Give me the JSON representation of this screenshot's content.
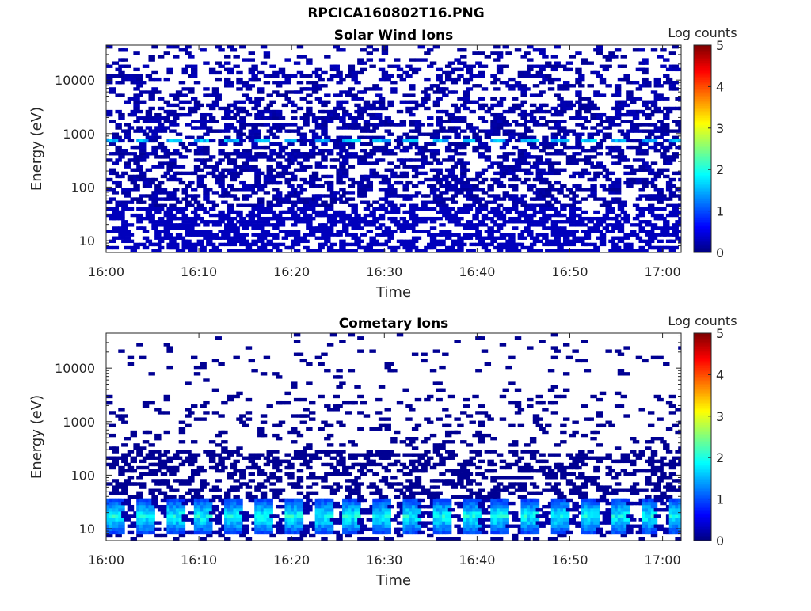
{
  "figure": {
    "title": "RPCICA160802T16.PNG"
  },
  "colors": {
    "colormap": [
      "#00007f",
      "#0000ff",
      "#007fff",
      "#00ffff",
      "#7fff7f",
      "#ffff00",
      "#ff7f00",
      "#ff0000",
      "#7f0000"
    ],
    "background": "#ffffff"
  },
  "chart_data": [
    {
      "type": "heatmap",
      "title": "Solar Wind Ions",
      "xlabel": "Time",
      "ylabel": "Energy (eV)",
      "y_scale": "log",
      "ylim": [
        6,
        45000
      ],
      "xlim": [
        "16:00",
        "17:02"
      ],
      "xticks": [
        "16:00",
        "16:10",
        "16:20",
        "16:30",
        "16:40",
        "16:50",
        "17:00"
      ],
      "yticks": [
        "10",
        "100",
        "1000",
        "10000"
      ],
      "colorbar": {
        "label": "Log counts",
        "range": [
          0,
          5
        ],
        "ticks": [
          "0",
          "1",
          "2",
          "3",
          "4",
          "5"
        ]
      },
      "profile": {
        "low_energy_band_eV": [
          6,
          40
        ],
        "low_energy_log_counts": 0.3,
        "scattered_band_eV": [
          40,
          45000
        ],
        "scattered_log_counts": 0.1,
        "peak_energy_eV": 750,
        "peak_log_counts": 1.7,
        "peak_repeat_period_min": 3.2
      }
    },
    {
      "type": "heatmap",
      "title": "Cometary Ions",
      "xlabel": "Time",
      "ylabel": "Energy (eV)",
      "y_scale": "log",
      "ylim": [
        6,
        45000
      ],
      "xlim": [
        "16:00",
        "17:02"
      ],
      "xticks": [
        "16:00",
        "16:10",
        "16:20",
        "16:30",
        "16:40",
        "16:50",
        "17:00"
      ],
      "yticks": [
        "10",
        "100",
        "1000",
        "10000"
      ],
      "colorbar": {
        "label": "Log counts",
        "range": [
          0,
          5
        ],
        "ticks": [
          "0",
          "1",
          "2",
          "3",
          "4",
          "5"
        ]
      },
      "profile": {
        "low_energy_band_eV": [
          8,
          35
        ],
        "low_energy_peak_log_counts": 2.0,
        "low_energy_repeat_period_min": 3.2,
        "scattered_band_eV": [
          40,
          45000
        ],
        "scattered_log_counts": 0.1
      }
    }
  ]
}
